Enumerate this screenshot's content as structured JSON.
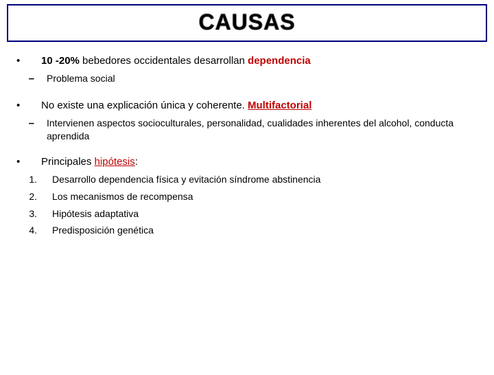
{
  "title": "CAUSAS",
  "p1": {
    "prefix": "10 -20%",
    "mid": " bebedores occidentales desarrollan ",
    "suffix": "dependencia"
  },
  "p1_sub": "Problema social",
  "p2": {
    "text": "No existe una explicación única y coherente. ",
    "suffix": "Multifactorial"
  },
  "p2_sub": "Intervienen aspectos socioculturales, personalidad, cualidades inherentes del alcohol, conducta aprendida",
  "p3": {
    "text": "Principales ",
    "suffix": "hipótesis",
    "colon": ":"
  },
  "h1": "Desarrollo dependencia física y evitación síndrome abstinencia",
  "h2": "Los mecanismos de recompensa",
  "h3": "Hipótesis adaptativa",
  "h4": "Predisposición genética",
  "n1": "1.",
  "n2": "2.",
  "n3": "3.",
  "n4": "4."
}
